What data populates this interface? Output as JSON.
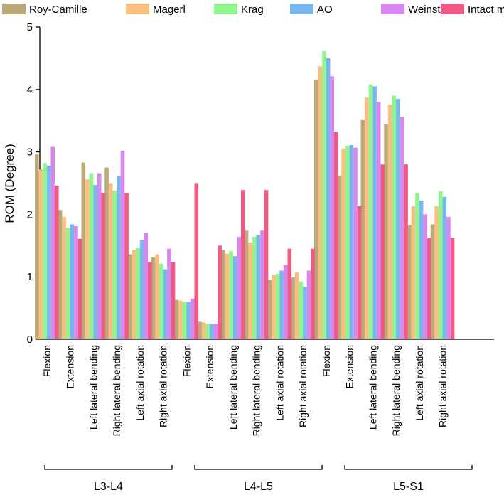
{
  "chart_data": {
    "type": "bar",
    "ylabel": "ROM (Degree)",
    "ylim": [
      0,
      5
    ],
    "yticks": [
      "0",
      "1",
      "2",
      "3",
      "4",
      "5"
    ],
    "legend_position": "top",
    "groups": [
      {
        "label": "L3-L4",
        "categories": [
          "Flexion",
          "Extension",
          "Left lateral bending",
          "Right lateral bending",
          "Left axial rotation",
          "Right axial rotation"
        ]
      },
      {
        "label": "L4-L5",
        "categories": [
          "Flexion",
          "Extension",
          "Left lateral bending",
          "Right lateral bending",
          "Left axial rotation",
          "Right axial rotation"
        ]
      },
      {
        "label": "L5-S1",
        "categories": [
          "Flexion",
          "Extension",
          "Left lateral bending",
          "Right lateral bending",
          "Left axial rotation",
          "Right axial rotation"
        ]
      }
    ],
    "series": [
      {
        "name": "Roy-Camille",
        "color": "#bba97a",
        "values": [
          2.96,
          2.07,
          2.83,
          2.75,
          1.36,
          1.31,
          0.63,
          0.28,
          1.43,
          1.74,
          0.95,
          0.99,
          4.16,
          2.62,
          3.51,
          3.44,
          1.83,
          1.84
        ]
      },
      {
        "name": "Magerl",
        "color": "#f9bf7f",
        "values": [
          2.72,
          1.96,
          2.56,
          2.49,
          1.43,
          1.36,
          0.62,
          0.27,
          1.37,
          1.55,
          1.03,
          1.07,
          4.37,
          3.05,
          3.87,
          3.76,
          2.13,
          2.13
        ]
      },
      {
        "name": "Krag",
        "color": "#8ff58f",
        "values": [
          2.82,
          1.78,
          2.66,
          2.38,
          1.46,
          1.21,
          0.6,
          0.24,
          1.41,
          1.64,
          1.05,
          0.92,
          4.61,
          3.1,
          4.08,
          3.9,
          2.34,
          2.37
        ]
      },
      {
        "name": "AO",
        "color": "#78b7ed",
        "values": [
          2.78,
          1.84,
          2.47,
          2.61,
          1.59,
          1.12,
          0.6,
          0.25,
          1.33,
          1.67,
          1.1,
          0.84,
          4.5,
          3.11,
          4.05,
          3.85,
          2.22,
          2.28
        ]
      },
      {
        "name": "Weinstein",
        "color": "#d887f0",
        "values": [
          3.09,
          1.81,
          2.66,
          3.02,
          1.7,
          1.45,
          0.65,
          0.25,
          1.64,
          1.74,
          1.19,
          1.1,
          4.21,
          3.07,
          3.8,
          3.56,
          2.0,
          1.96
        ]
      },
      {
        "name": "Intact model",
        "color": "#ef5b83",
        "values": [
          2.46,
          1.61,
          2.34,
          2.34,
          1.24,
          1.24,
          2.49,
          1.5,
          2.39,
          2.39,
          1.45,
          1.45,
          3.32,
          2.13,
          2.8,
          2.8,
          1.62,
          1.62
        ]
      }
    ]
  }
}
